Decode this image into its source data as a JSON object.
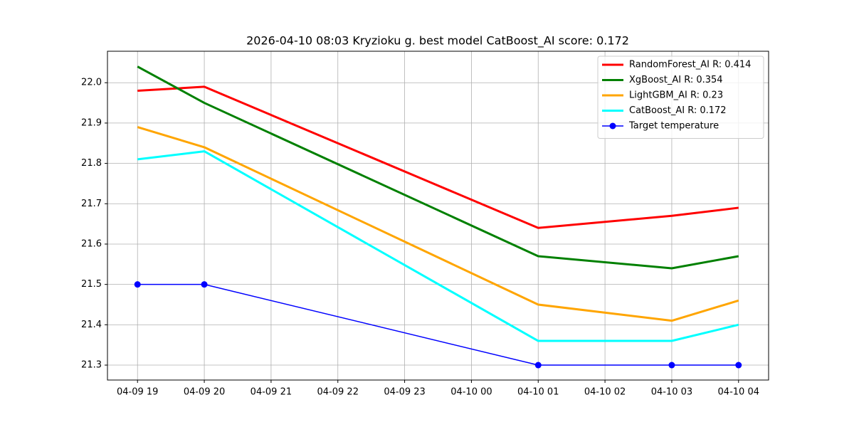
{
  "chart_data": {
    "type": "line",
    "title": "2026-04-10 08:03 Kryzioku g. best model CatBoost_AI score: 0.172",
    "x": [
      "04-09 19",
      "04-09 20",
      "04-10 01",
      "04-10 03",
      "04-10 04"
    ],
    "xticks": [
      "04-09 19",
      "04-09 20",
      "04-09 21",
      "04-09 22",
      "04-09 23",
      "04-10 00",
      "04-10 01",
      "04-10 02",
      "04-10 03",
      "04-10 04"
    ],
    "ylim": [
      21.263,
      22.078
    ],
    "yticks": [
      21.3,
      21.4,
      21.5,
      21.6,
      21.7,
      21.8,
      21.9,
      {
        "value": 22.0,
        "label": "22.0"
      }
    ],
    "grid": true,
    "legend": "upper right",
    "series": [
      {
        "name": "RandomForest_AI R: 0.414",
        "color": "#ff0000",
        "linewidth": 3,
        "values": [
          21.98,
          21.99,
          21.64,
          21.67,
          21.69
        ]
      },
      {
        "name": "XgBoost_AI R: 0.354",
        "color": "#008000",
        "linewidth": 3,
        "values": [
          22.04,
          21.95,
          21.57,
          21.54,
          21.57
        ]
      },
      {
        "name": "LightGBM_AI R: 0.23",
        "color": "#ffa500",
        "linewidth": 3,
        "values": [
          21.89,
          21.84,
          21.45,
          21.41,
          21.46
        ]
      },
      {
        "name": "CatBoost_AI R: 0.172",
        "color": "#00ffff",
        "linewidth": 3,
        "values": [
          21.81,
          21.83,
          21.36,
          21.36,
          21.4
        ]
      },
      {
        "name": "Target temperature",
        "color": "#0000ff",
        "linewidth": 1.5,
        "marker": "o",
        "values": [
          21.5,
          21.5,
          21.3,
          21.3,
          21.3
        ]
      }
    ]
  }
}
